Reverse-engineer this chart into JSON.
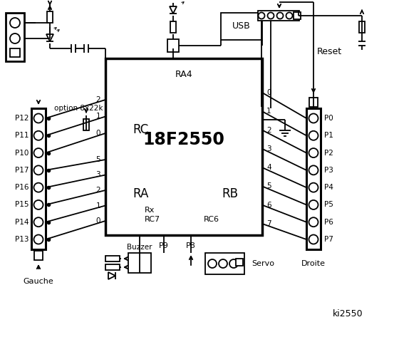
{
  "bg_color": "#ffffff",
  "line_color": "#000000",
  "chip_label": "18F2550",
  "chip_ra4": "RA4",
  "chip_rc": "RC",
  "chip_ra": "RA",
  "chip_rb": "RB",
  "chip_rx": "Rx",
  "chip_rc7": "RC7",
  "chip_rc6": "RC6",
  "left_pins": [
    "P12",
    "P11",
    "P10",
    "P17",
    "P16",
    "P15",
    "P14",
    "P13"
  ],
  "left_pin_nums": [
    "2",
    "1",
    "0",
    "5",
    "3",
    "2",
    "1",
    "0"
  ],
  "right_pins": [
    "P0",
    "P1",
    "P2",
    "P3",
    "P4",
    "P5",
    "P6",
    "P7"
  ],
  "right_pin_nums": [
    "0",
    "1",
    "2",
    "3",
    "4",
    "5",
    "6",
    "7"
  ],
  "label_gauche": "Gauche",
  "label_droite": "Droite",
  "label_servo": "Servo",
  "label_buzzer": "Buzzer",
  "label_usb": "USB",
  "label_reset": "Reset",
  "label_option": "option 8x22k",
  "label_ki": "ki2550",
  "label_p8": "P8",
  "label_p9": "P9"
}
